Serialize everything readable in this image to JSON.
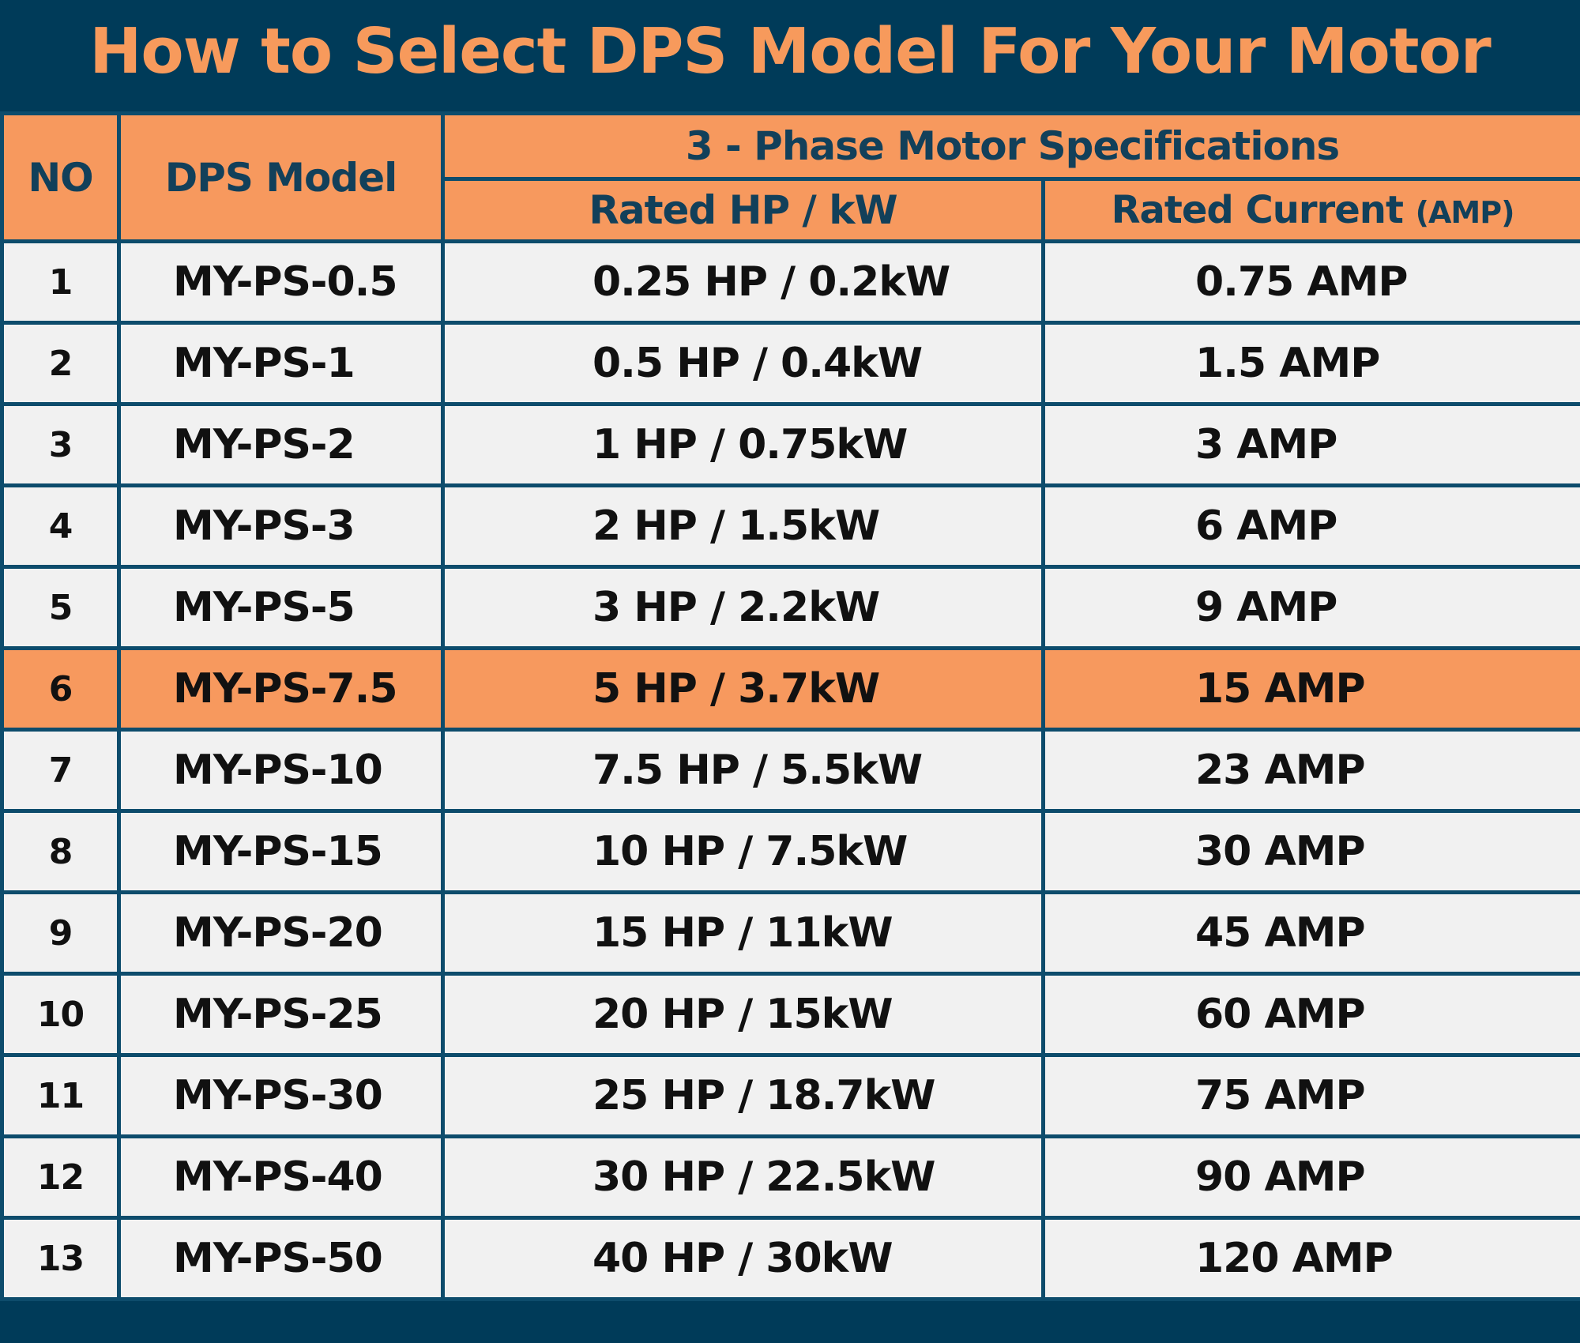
{
  "title": "How to Select DPS Model For Your Motor",
  "colors": {
    "background": "#003b59",
    "title": "#f79a5c",
    "header": "#f7995e",
    "header_text": "#12405a",
    "row": "#f1f1f1",
    "highlight_row": "#f7995e",
    "grid": "#0d4c6c"
  },
  "headers": {
    "no": "NO",
    "model": "DPS Model",
    "group": "3 - Phase Motor Specifications",
    "hp": "Rated HP / kW",
    "current": "Rated Current",
    "current_unit": "(AMP)"
  },
  "highlighted_row": 6,
  "rows": [
    {
      "no": "1",
      "model": "MY-PS-0.5",
      "hp": "0.25 HP / 0.2kW",
      "amp": "0.75 AMP"
    },
    {
      "no": "2",
      "model": "MY-PS-1",
      "hp": "0.5 HP / 0.4kW",
      "amp": "1.5 AMP"
    },
    {
      "no": "3",
      "model": "MY-PS-2",
      "hp": "1 HP / 0.75kW",
      "amp": "3 AMP"
    },
    {
      "no": "4",
      "model": "MY-PS-3",
      "hp": "2 HP / 1.5kW",
      "amp": "6 AMP"
    },
    {
      "no": "5",
      "model": "MY-PS-5",
      "hp": "3 HP / 2.2kW",
      "amp": "9 AMP"
    },
    {
      "no": "6",
      "model": "MY-PS-7.5",
      "hp": "5 HP / 3.7kW",
      "amp": "15 AMP"
    },
    {
      "no": "7",
      "model": "MY-PS-10",
      "hp": "7.5 HP / 5.5kW",
      "amp": "23 AMP"
    },
    {
      "no": "8",
      "model": "MY-PS-15",
      "hp": "10 HP / 7.5kW",
      "amp": "30 AMP"
    },
    {
      "no": "9",
      "model": "MY-PS-20",
      "hp": "15 HP / 11kW",
      "amp": "45 AMP"
    },
    {
      "no": "10",
      "model": "MY-PS-25",
      "hp": "20 HP / 15kW",
      "amp": "60 AMP"
    },
    {
      "no": "11",
      "model": "MY-PS-30",
      "hp": "25 HP / 18.7kW",
      "amp": "75 AMP"
    },
    {
      "no": "12",
      "model": "MY-PS-40",
      "hp": "30 HP / 22.5kW",
      "amp": "90 AMP"
    },
    {
      "no": "13",
      "model": "MY-PS-50",
      "hp": "40 HP / 30kW",
      "amp": "120 AMP"
    }
  ]
}
